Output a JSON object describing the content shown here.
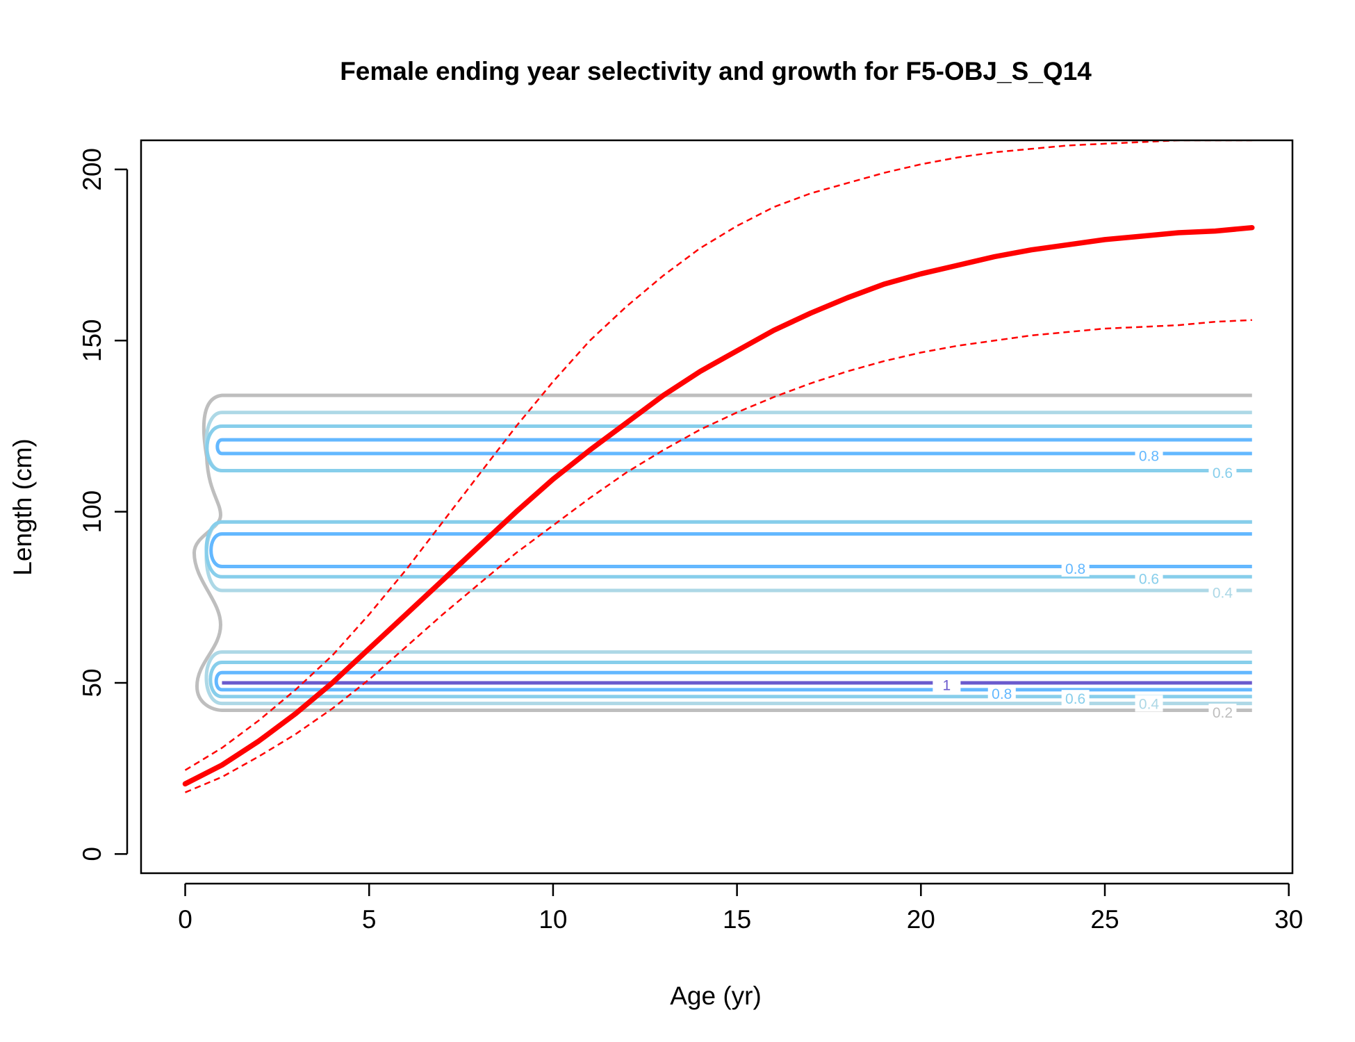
{
  "chart_data": {
    "type": "line",
    "title": "Female ending year selectivity and growth for F5-OBJ_S_Q14",
    "xlabel": "Age (yr)",
    "ylabel": "Length (cm)",
    "xlim": [
      -1.2,
      30.1
    ],
    "ylim": [
      -5.6,
      208.5
    ],
    "xticks": [
      0,
      5,
      10,
      15,
      20,
      25,
      30
    ],
    "xtick_labels": [
      "0",
      "5",
      "10",
      "15",
      "20",
      "25",
      "30"
    ],
    "yticks": [
      0,
      50,
      100,
      150,
      200
    ],
    "ytick_labels": [
      "0",
      "50",
      "100",
      "150",
      "200"
    ],
    "grid": false,
    "growth": {
      "color": "#ff0000",
      "x": [
        0,
        1,
        2,
        3,
        4,
        5,
        6,
        7,
        8,
        9,
        10,
        11,
        12,
        13,
        14,
        15,
        16,
        17,
        18,
        19,
        20,
        21,
        22,
        23,
        24,
        25,
        26,
        27,
        28,
        29
      ],
      "mean": [
        20.5,
        26,
        33,
        41,
        50,
        60,
        70,
        80,
        90,
        100,
        109.5,
        118,
        126,
        134,
        141,
        147,
        153,
        158,
        162.5,
        166.5,
        169.5,
        172,
        174.5,
        176.5,
        178,
        179.5,
        180.5,
        181.5,
        182,
        183
      ],
      "upper": [
        24.5,
        31,
        39,
        48,
        58,
        70,
        83,
        97,
        111,
        125,
        138,
        150,
        160,
        169,
        177,
        183.5,
        189,
        193,
        196,
        199,
        201.5,
        203.5,
        205,
        206,
        207,
        207.5,
        208,
        208.5,
        208.5,
        208.5
      ],
      "lower": [
        18,
        22.5,
        28.5,
        35,
        42.5,
        51,
        60.5,
        70,
        79,
        88,
        96,
        104,
        111.5,
        118,
        124,
        129,
        133.5,
        137.5,
        141,
        144,
        146.5,
        148.5,
        150,
        151.5,
        152.5,
        153.5,
        154,
        154.5,
        155.5,
        156
      ]
    },
    "selectivity_contours": {
      "levels": [
        0.2,
        0.4,
        0.6,
        0.8,
        1
      ],
      "colors": {
        "0.2": "#bebebe",
        "0.4": "#add8e6",
        "0.6": "#87ceeb",
        "0.8": "#63b8ff",
        "1": "#6a5acd"
      },
      "x_range": [
        1,
        29
      ],
      "bands": [
        {
          "level": 0.2,
          "lengths": [
            42,
            134
          ]
        },
        {
          "level": 0.4,
          "lengths": [
            44,
            59,
            77,
            97,
            112,
            129
          ]
        },
        {
          "level": 0.6,
          "lengths": [
            46,
            56,
            81,
            97,
            112,
            125
          ]
        },
        {
          "level": 0.8,
          "lengths": [
            48,
            53,
            84,
            93.5,
            117,
            121
          ]
        },
        {
          "level": 1,
          "lengths": [
            50,
            50
          ]
        }
      ],
      "labels": [
        {
          "text": "0.8",
          "color": "#63b8ff",
          "x": 26.2,
          "y": 116.5
        },
        {
          "text": "0.6",
          "color": "#87ceeb",
          "x": 28.2,
          "y": 111.5
        },
        {
          "text": "0.8",
          "color": "#63b8ff",
          "x": 24.2,
          "y": 83.5
        },
        {
          "text": "0.6",
          "color": "#87ceeb",
          "x": 26.2,
          "y": 80.5
        },
        {
          "text": "0.4",
          "color": "#add8e6",
          "x": 28.2,
          "y": 76.5
        },
        {
          "text": "1",
          "color": "#6a5acd",
          "x": 20.7,
          "y": 49.5
        },
        {
          "text": "0.8",
          "color": "#63b8ff",
          "x": 22.2,
          "y": 47
        },
        {
          "text": "0.6",
          "color": "#87ceeb",
          "x": 24.2,
          "y": 45.5
        },
        {
          "text": "0.4",
          "color": "#add8e6",
          "x": 26.2,
          "y": 44
        },
        {
          "text": "0.2",
          "color": "#bebebe",
          "x": 28.2,
          "y": 41.5
        }
      ]
    }
  }
}
